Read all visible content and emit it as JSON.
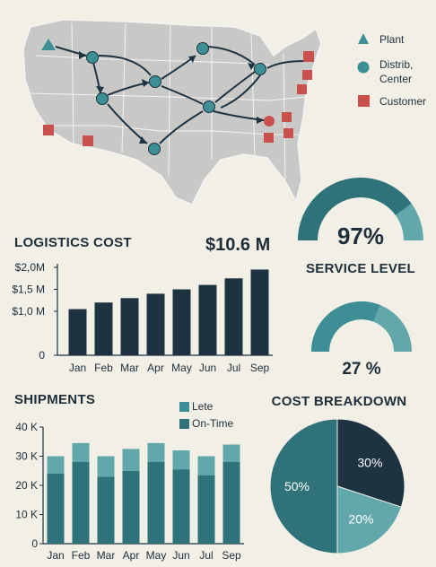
{
  "colors": {
    "background": "#f1efe6",
    "map_land": "#c8c9c6",
    "map_border": "#f3f3f1",
    "dark_navy": "#1e3342",
    "teal": "#3d8f95",
    "teal_light": "#62a8aa",
    "teal_dark": "#2f7279",
    "customer_red": "#c9504c",
    "text": "#1e2f3a"
  },
  "map_legend": [
    {
      "label": "Plant",
      "icon": "triangle-icon"
    },
    {
      "label": "Distrib,\nCenter",
      "icon": "circle-icon"
    },
    {
      "label": "Customer",
      "icon": "square-icon"
    }
  ],
  "logistics": {
    "title": "LOGISTICS COST",
    "total": "$10.6 M"
  },
  "service": {
    "gauge_value": "97%",
    "gauge_fraction": 0.97,
    "title": "SERVICE LEVEL",
    "gauge2_value": "27 %",
    "gauge2_fraction": 0.27
  },
  "shipments": {
    "title": "SHIPMENTS",
    "legend_late": "Lete",
    "legend_ontime": "On-Time"
  },
  "breakdown": {
    "title": "COST BREAKDOWN"
  },
  "chart_data": [
    {
      "type": "bar",
      "title": "LOGISTICS COST",
      "categories": [
        "Jan",
        "Feb",
        "Mar",
        "Apr",
        "May",
        "Jun",
        "Jul",
        "Sep"
      ],
      "values": [
        1.05,
        1.2,
        1.3,
        1.4,
        1.5,
        1.6,
        1.75,
        1.95
      ],
      "ylim": [
        0,
        2.0
      ],
      "yticks": [
        {
          "value": 0,
          "label": "0"
        },
        {
          "value": 1.0,
          "label": "$1,0 M"
        },
        {
          "value": 1.5,
          "label": "$1,5 M"
        },
        {
          "value": 2.0,
          "label": "$2,0M"
        }
      ]
    },
    {
      "type": "bar",
      "stacked": true,
      "title": "SHIPMENTS",
      "categories": [
        "Jan",
        "Feb",
        "Mar",
        "Apr",
        "May",
        "Jun",
        "Jul",
        "Sep"
      ],
      "series": [
        {
          "name": "On-Time",
          "values": [
            24,
            28,
            23,
            25,
            28,
            25.5,
            23.5,
            28
          ]
        },
        {
          "name": "Lete",
          "values": [
            6,
            6.5,
            7,
            7.5,
            6.5,
            6.5,
            6.5,
            6
          ]
        }
      ],
      "ylim": [
        0,
        40
      ],
      "yticks": [
        {
          "value": 0,
          "label": "0"
        },
        {
          "value": 10,
          "label": "10 K"
        },
        {
          "value": 20,
          "label": "20 K"
        },
        {
          "value": 30,
          "label": "30 K"
        },
        {
          "value": 40,
          "label": "40 K"
        }
      ]
    },
    {
      "type": "pie",
      "title": "COST BREAKDOWN",
      "slices": [
        {
          "label": "30%",
          "value": 30
        },
        {
          "label": "20%",
          "value": 20
        },
        {
          "label": "50%",
          "value": 50
        }
      ]
    }
  ]
}
